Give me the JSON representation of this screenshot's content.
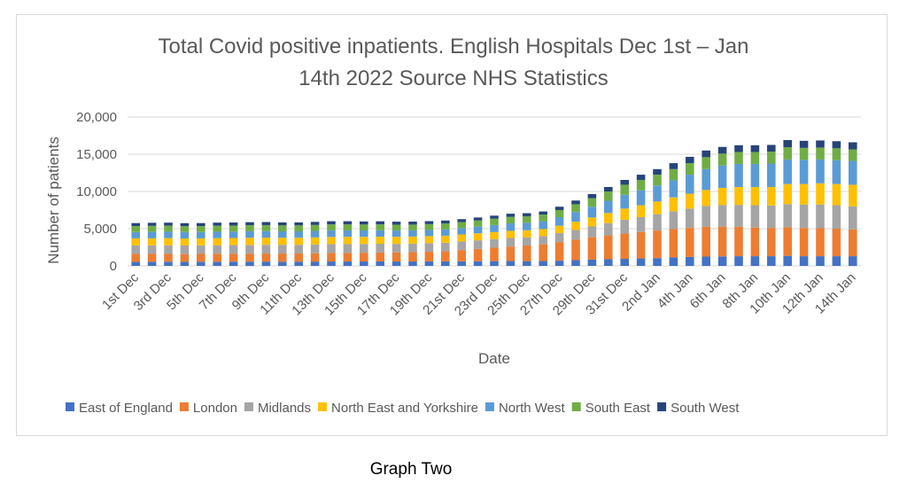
{
  "chart_data": {
    "type": "bar",
    "stacked": true,
    "title_line1": "Total Covid positive inpatients. English Hospitals Dec 1st – Jan",
    "title_line2": "14th  2022 Source NHS Statistics",
    "xlabel": "Date",
    "ylabel": "Number of patients",
    "ylim": [
      0,
      20000
    ],
    "yticks": [
      "0",
      "5,000",
      "10,000",
      "15,000",
      "20,000"
    ],
    "grid": true,
    "legend_position": "bottom",
    "categories": [
      "1st Dec",
      "2nd Dec",
      "3rd Dec",
      "4th Dec",
      "5th Dec",
      "6th Dec",
      "7th Dec",
      "8th Dec",
      "9th Dec",
      "10th Dec",
      "11th Dec",
      "12th Dec",
      "13th Dec",
      "14th Dec",
      "15th Dec",
      "16th Dec",
      "17th Dec",
      "18th Dec",
      "19th Dec",
      "20th Dec",
      "21st Dec",
      "22nd Dec",
      "23rd Dec",
      "24th Dec",
      "25th Dec",
      "26th Dec",
      "27th Dec",
      "28th Dec",
      "29th Dec",
      "30th Dec",
      "31st Dec",
      "1st Jan",
      "2nd Jan",
      "3rd Jan",
      "4th Jan",
      "5th Jan",
      "6th Jan",
      "7th Jan",
      "8th Jan",
      "9th Jan",
      "10th Jan",
      "11th Jan",
      "12th Jan",
      "13th Jan",
      "14th Jan"
    ],
    "tick_labels": [
      "1st Dec",
      "3rd Dec",
      "5th Dec",
      "7th Dec",
      "9th Dec",
      "11th Dec",
      "13th Dec",
      "15th Dec",
      "17th Dec",
      "19th Dec",
      "21st Dec",
      "23rd Dec",
      "25th Dec",
      "27th Dec",
      "29th Dec",
      "31st Dec",
      "2nd Jan",
      "4th Jan",
      "6th Jan",
      "8th Jan",
      "10th Jan",
      "12th Jan",
      "14th Jan"
    ],
    "series": [
      {
        "name": "East of England",
        "color": "#4472c4",
        "values": [
          550,
          560,
          560,
          550,
          560,
          560,
          570,
          570,
          580,
          570,
          570,
          580,
          590,
          590,
          590,
          600,
          590,
          590,
          600,
          610,
          620,
          630,
          640,
          650,
          640,
          650,
          700,
          780,
          850,
          900,
          950,
          1000,
          1050,
          1150,
          1200,
          1250,
          1280,
          1300,
          1300,
          1300,
          1350,
          1300,
          1300,
          1300,
          1300
        ]
      },
      {
        "name": "London",
        "color": "#ed7d31",
        "values": [
          1050,
          1050,
          1050,
          1040,
          1050,
          1060,
          1070,
          1080,
          1080,
          1090,
          1100,
          1120,
          1150,
          1160,
          1180,
          1200,
          1220,
          1250,
          1300,
          1350,
          1500,
          1650,
          1800,
          1950,
          2100,
          2250,
          2500,
          2750,
          3000,
          3200,
          3400,
          3550,
          3700,
          3800,
          3900,
          4000,
          4000,
          3950,
          3850,
          3800,
          3850,
          3800,
          3750,
          3700,
          3600
        ]
      },
      {
        "name": "Midlands",
        "color": "#a5a5a5",
        "values": [
          1150,
          1150,
          1160,
          1150,
          1150,
          1160,
          1160,
          1170,
          1180,
          1170,
          1160,
          1170,
          1180,
          1180,
          1170,
          1170,
          1150,
          1150,
          1150,
          1150,
          1150,
          1150,
          1150,
          1150,
          1100,
          1100,
          1200,
          1300,
          1450,
          1650,
          1850,
          2000,
          2200,
          2400,
          2600,
          2800,
          2900,
          2950,
          3000,
          3000,
          3100,
          3150,
          3200,
          3150,
          3100
        ]
      },
      {
        "name": "North East and Yorkshire",
        "color": "#ffc000",
        "values": [
          950,
          950,
          960,
          950,
          940,
          950,
          950,
          960,
          960,
          950,
          950,
          960,
          970,
          970,
          960,
          960,
          950,
          950,
          950,
          950,
          950,
          950,
          950,
          960,
          950,
          950,
          1000,
          1100,
          1200,
          1350,
          1500,
          1600,
          1700,
          1850,
          2000,
          2150,
          2300,
          2400,
          2450,
          2500,
          2700,
          2750,
          2850,
          2850,
          2900
        ]
      },
      {
        "name": "North West",
        "color": "#5b9bd5",
        "values": [
          850,
          860,
          860,
          850,
          850,
          860,
          860,
          870,
          870,
          860,
          860,
          870,
          880,
          870,
          860,
          850,
          840,
          830,
          830,
          840,
          860,
          900,
          950,
          1000,
          1000,
          1050,
          1150,
          1300,
          1450,
          1650,
          1850,
          2000,
          2150,
          2300,
          2550,
          2800,
          3000,
          3100,
          3100,
          3150,
          3300,
          3250,
          3200,
          3200,
          3200
        ]
      },
      {
        "name": "South East",
        "color": "#70ad47",
        "values": [
          800,
          810,
          810,
          800,
          800,
          810,
          810,
          810,
          810,
          800,
          800,
          800,
          810,
          810,
          800,
          800,
          790,
          780,
          780,
          790,
          800,
          820,
          850,
          880,
          880,
          900,
          950,
          1050,
          1150,
          1250,
          1350,
          1400,
          1450,
          1500,
          1550,
          1600,
          1600,
          1600,
          1600,
          1600,
          1650,
          1600,
          1600,
          1600,
          1550
        ]
      },
      {
        "name": "South West",
        "color": "#264478",
        "values": [
          400,
          410,
          410,
          400,
          400,
          410,
          410,
          410,
          410,
          400,
          400,
          410,
          420,
          420,
          410,
          410,
          400,
          400,
          400,
          400,
          400,
          400,
          410,
          420,
          410,
          410,
          450,
          500,
          550,
          600,
          650,
          700,
          750,
          800,
          850,
          900,
          900,
          900,
          900,
          900,
          950,
          950,
          950,
          950,
          950
        ]
      }
    ]
  },
  "caption": "Graph Two"
}
